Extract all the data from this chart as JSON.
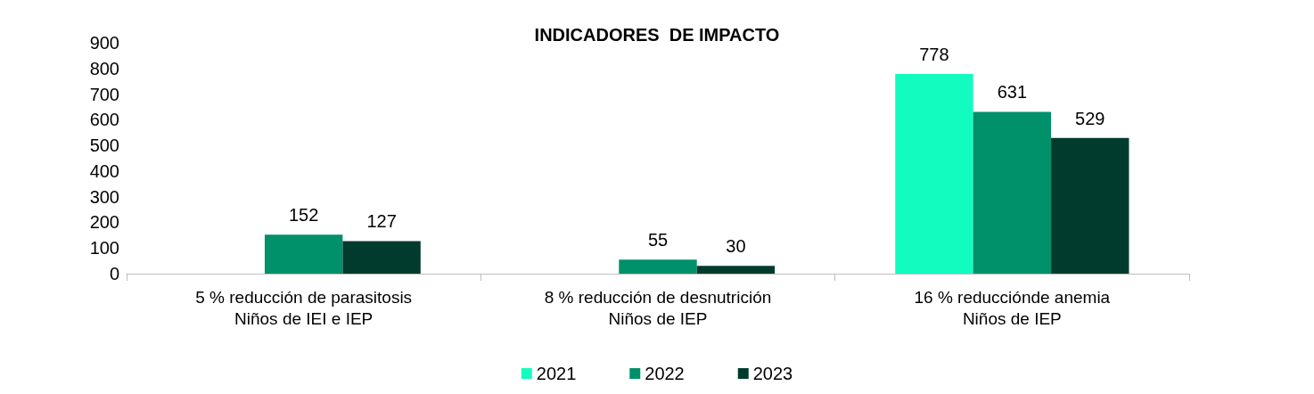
{
  "chart_data": {
    "type": "bar",
    "title": "INDICADORES  DE IMPACTO",
    "categories": [
      "5 % reducción de parasitosis\nNiños de IEI e IEP",
      "8 % reducción de desnutrición\nNiños de IEP",
      "16 % reducciónde anemia\nNiños de IEP"
    ],
    "series": [
      {
        "name": "2021",
        "color": "#12fcc0",
        "values": [
          null,
          null,
          778
        ]
      },
      {
        "name": "2022",
        "color": "#00906a",
        "values": [
          152,
          55,
          631
        ]
      },
      {
        "name": "2023",
        "color": "#003b2e",
        "values": [
          127,
          30,
          529
        ]
      }
    ],
    "ylim": [
      0,
      900
    ],
    "yticks": [
      0,
      100,
      200,
      300,
      400,
      500,
      600,
      700,
      800,
      900
    ],
    "data_labels": true,
    "grid": false,
    "legend": "bottom"
  }
}
